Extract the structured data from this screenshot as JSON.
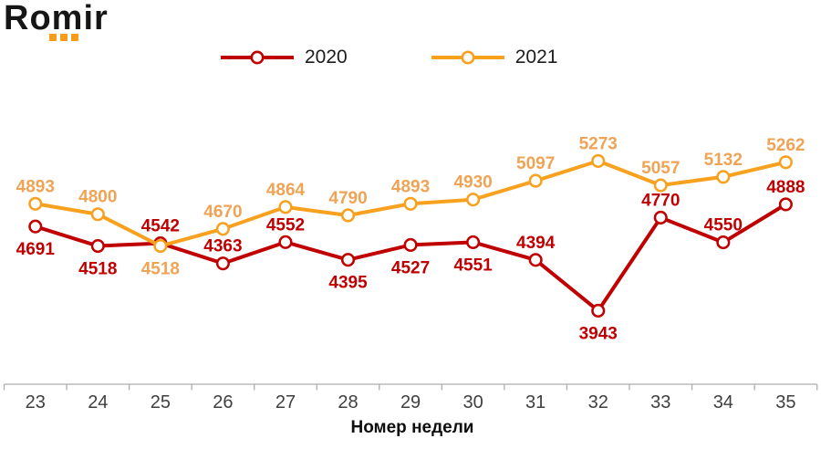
{
  "logo": {
    "text": "Romir",
    "dot_color": "#F59C1A"
  },
  "legend": {
    "items": [
      {
        "label": "2020",
        "color": "#C00000"
      },
      {
        "label": "2021",
        "color": "#F7A11F"
      }
    ]
  },
  "chart_data": {
    "type": "line",
    "title": "",
    "xlabel": "Номер недели",
    "ylabel": "",
    "x": [
      23,
      24,
      25,
      26,
      27,
      28,
      29,
      30,
      31,
      32,
      33,
      34,
      35
    ],
    "series": [
      {
        "name": "2020",
        "color": "#C00000",
        "label_color": "#C00000",
        "marker": "circle-open",
        "values": [
          4691,
          4518,
          4542,
          4363,
          4552,
          4395,
          4527,
          4551,
          4394,
          3943,
          4770,
          4550,
          4888
        ],
        "label_side": [
          "below",
          "below",
          "above",
          "above",
          "above",
          "below",
          "below",
          "below",
          "above",
          "below",
          "above",
          "above",
          "above"
        ]
      },
      {
        "name": "2021",
        "color": "#F7A11F",
        "label_color": "#EFA355",
        "marker": "circle-open",
        "values": [
          4893,
          4800,
          4518,
          4670,
          4864,
          4790,
          4893,
          4930,
          5097,
          5273,
          5057,
          5132,
          5262
        ],
        "label_side": [
          "above",
          "above",
          "below",
          "above",
          "above",
          "above",
          "above",
          "above",
          "above",
          "above",
          "above",
          "above",
          "above"
        ]
      }
    ],
    "ylim": [
      3290,
      5560
    ],
    "grid": false,
    "legend_position": "top",
    "axis_color": "#ADADAD",
    "tick_label_color": "#3F3F3F",
    "xlabel_color": "#0E0E0E"
  }
}
